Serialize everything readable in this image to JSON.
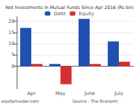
{
  "chart_data": {
    "type": "bar",
    "title": "Net Investments in Mutual Funds Since Apr 2016 (Rs bn)",
    "categories": [
      "Apr",
      "May",
      "June",
      "July"
    ],
    "series": [
      {
        "name": "Debt",
        "color": "#2050b0",
        "values": [
          17,
          1,
          21,
          11
        ]
      },
      {
        "name": "Equity",
        "color": "#d43030",
        "values": [
          1,
          -8,
          1,
          2
        ]
      }
    ],
    "ylim": [
      -10,
      22
    ],
    "yticks": [
      0,
      5,
      10,
      15,
      20
    ],
    "grid": true,
    "legend": "top",
    "annotations": [
      "equitymaster.com",
      "Source : The Economi"
    ]
  }
}
